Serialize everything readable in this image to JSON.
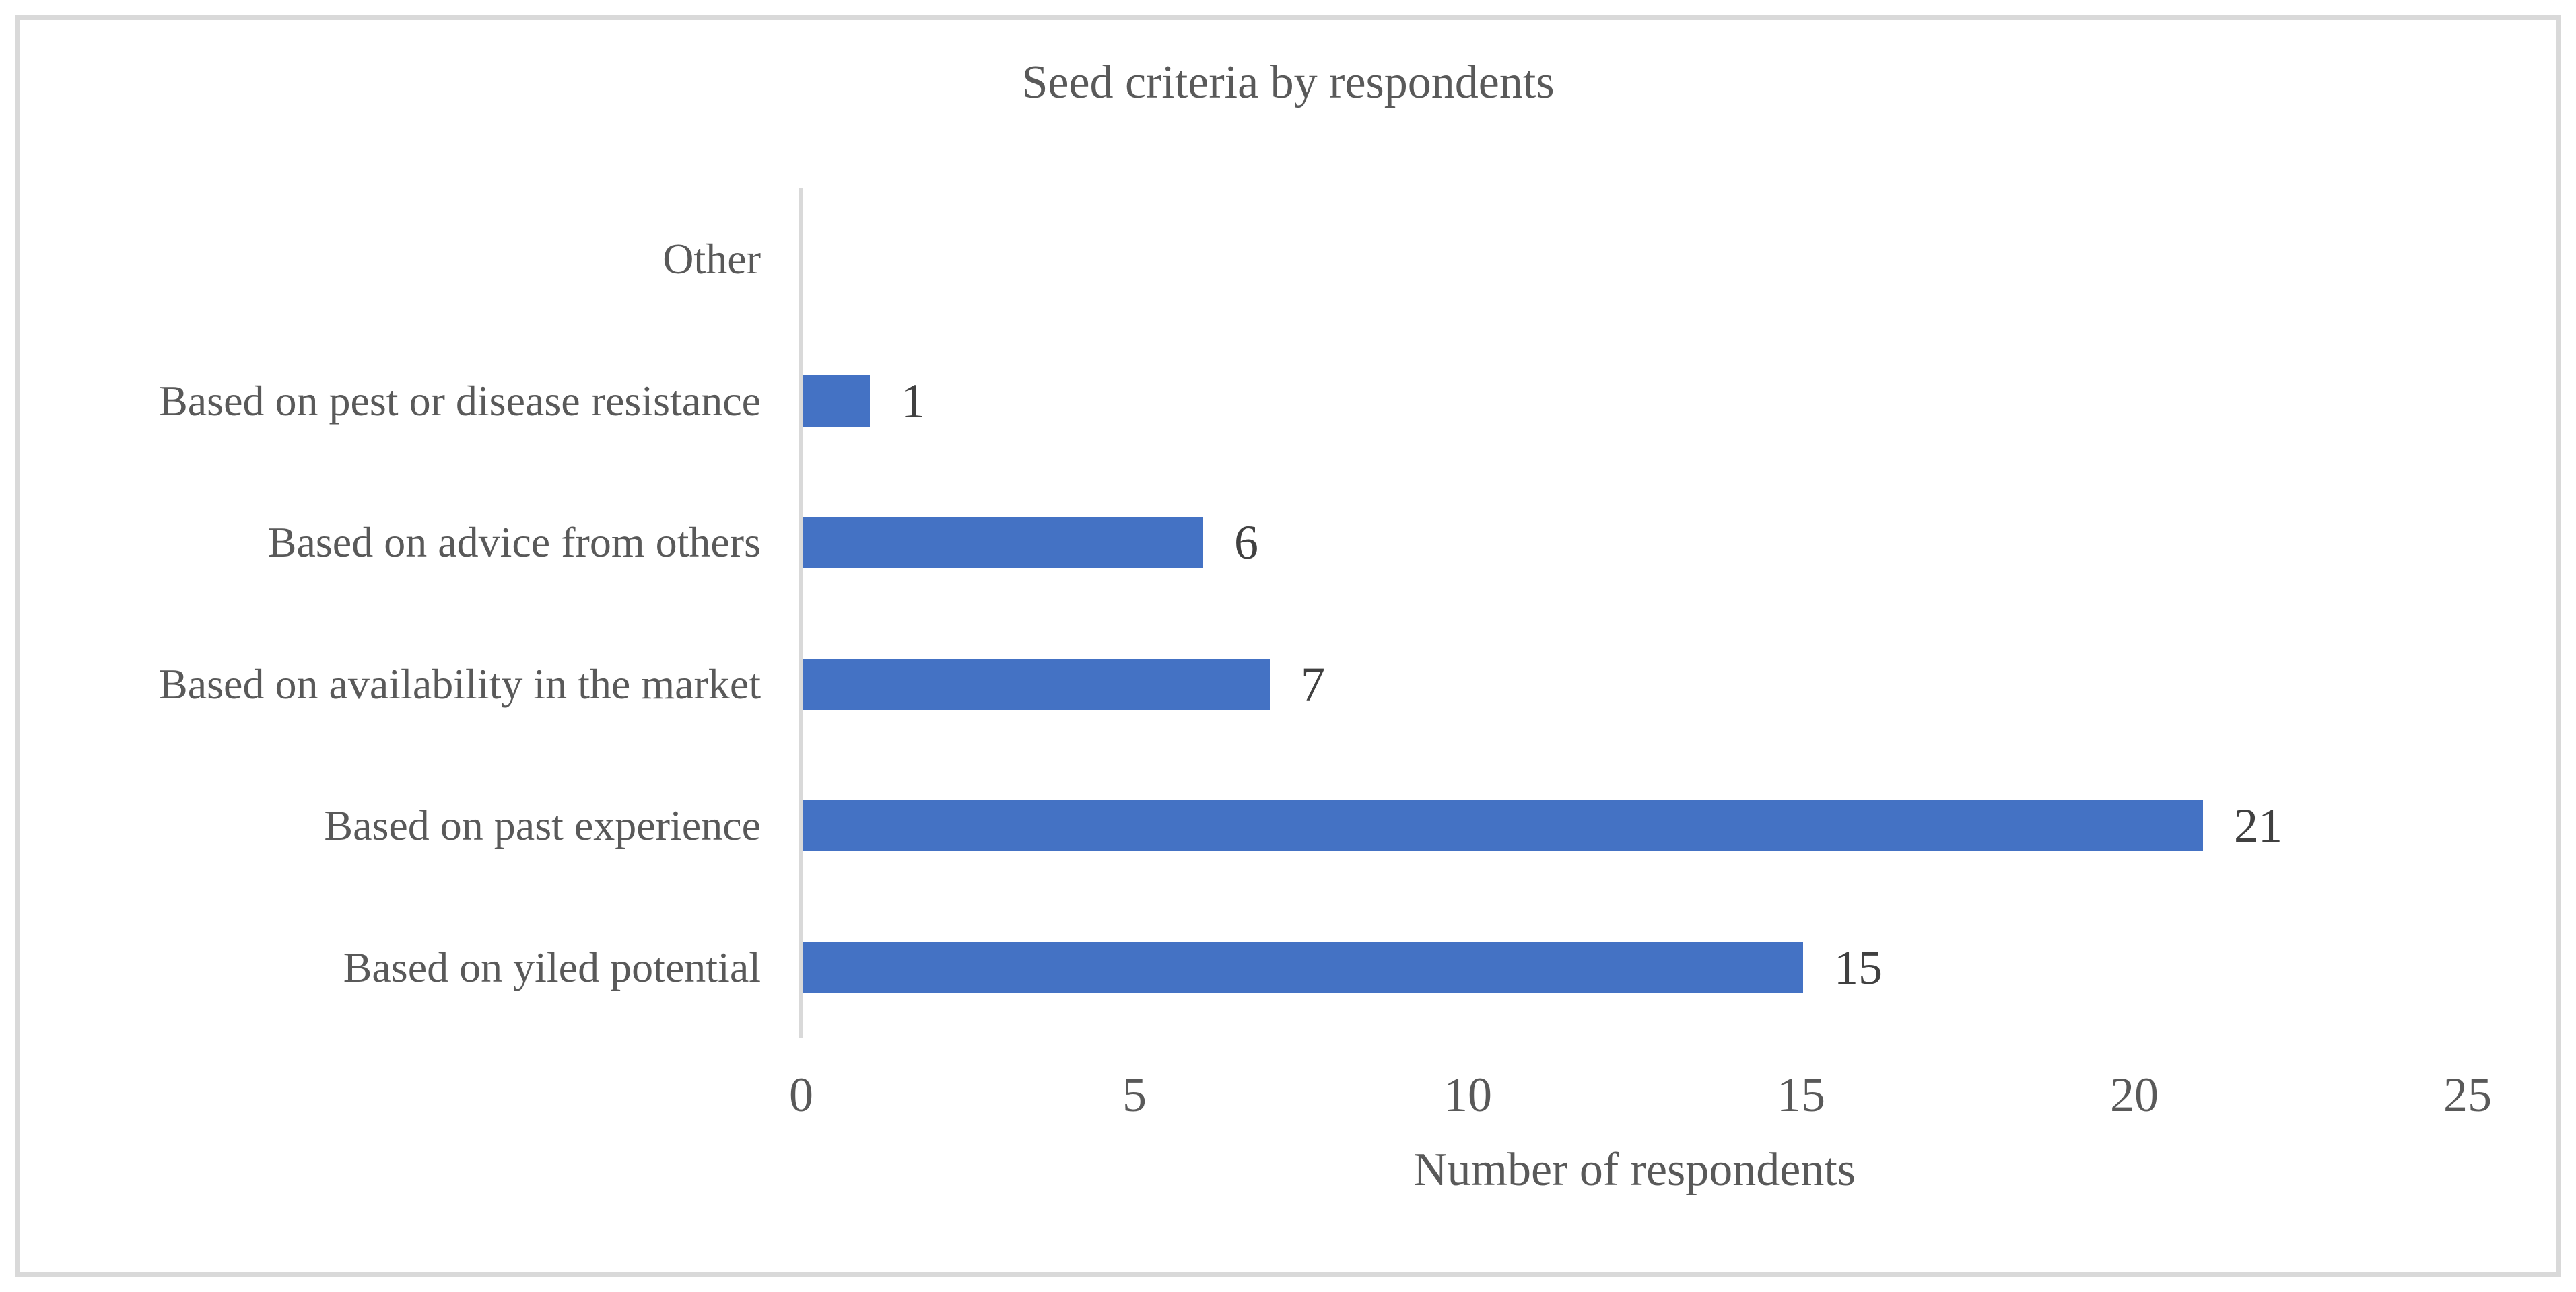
{
  "chart_data": {
    "type": "bar",
    "orientation": "horizontal",
    "title": "Seed criteria by respondents",
    "xlabel": "Number of respondents",
    "ylabel": "",
    "categories": [
      "Other",
      "Based on pest or disease resistance",
      "Based on advice from others",
      "Based on availability in the market",
      "Based on past experience",
      "Based on yiled potential"
    ],
    "values": [
      0,
      1,
      6,
      7,
      21,
      15
    ],
    "data_labels": [
      "",
      "1",
      "6",
      "7",
      "21",
      "15"
    ],
    "x_ticks": [
      0,
      5,
      10,
      15,
      20,
      25
    ],
    "xlim": [
      0,
      25
    ],
    "grid": false,
    "legend": false,
    "bar_color": "#4472C4",
    "colors": {
      "title_text": "#595959",
      "category_text": "#595959",
      "tick_text": "#595959",
      "value_text": "#404040",
      "axis_line": "#D9D9D9",
      "frame_border": "#D9D9D9",
      "background": "#FFFFFF"
    }
  }
}
